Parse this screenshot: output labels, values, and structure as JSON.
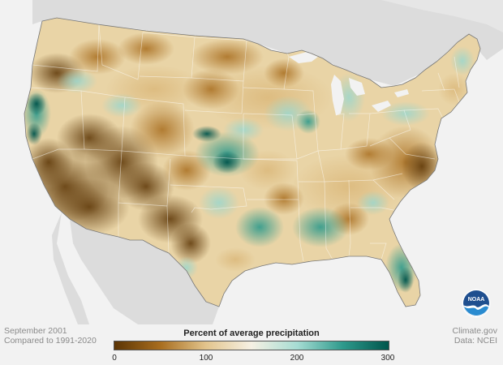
{
  "map": {
    "region": "Contiguous United States",
    "metric": "Percent of average precipitation",
    "colors": {
      "very_dry": "#5b3404",
      "dry": "#a86d1e",
      "moderately_dry": "#d8b271",
      "near_normal": "#f6f1e4",
      "moderately_wet": "#9bd6cd",
      "wet": "#2e9a8c",
      "very_wet": "#00554c",
      "land_outside": "#dcdcdc",
      "water": "#f2f2f2"
    }
  },
  "caption": {
    "period": "September 2001",
    "comparison": "Compared to 1991-2020"
  },
  "credits": {
    "site": "Climate.gov",
    "data_source": "Data: NCEI"
  },
  "legend": {
    "title": "Percent of average precipitation",
    "ticks": [
      "0",
      "100",
      "200",
      "300"
    ],
    "range": [
      0,
      300
    ],
    "gradient": [
      "#5b3404",
      "#a86d1e",
      "#e2c48c",
      "#f6f1e4",
      "#a6dcd3",
      "#2e9a8c",
      "#00554c"
    ]
  },
  "logo": {
    "text": "NOAA",
    "icon": "noaa-logo-icon"
  }
}
